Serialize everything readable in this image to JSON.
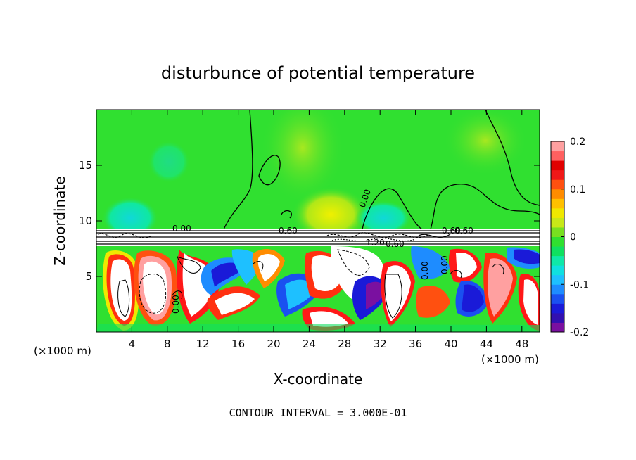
{
  "chart_data": {
    "type": "heatmap",
    "title": "disturbunce of potential temperature",
    "xlabel": "X-coordinate",
    "ylabel": "Z-coordinate",
    "x_unit": "(×1000 m)",
    "x_unit_right": "(×1000 m)",
    "xlim": [
      0,
      50
    ],
    "ylim": [
      0,
      20
    ],
    "x_ticks": [
      4,
      8,
      12,
      16,
      20,
      24,
      28,
      32,
      36,
      40,
      44,
      48
    ],
    "y_ticks": [
      5,
      10,
      15
    ],
    "colorbar": {
      "ticks": [
        "0.2",
        "0.1",
        "0",
        "-0.1",
        "-0.2"
      ],
      "range": [
        -0.2,
        0.2
      ],
      "colors": [
        "#7a10a0",
        "#3210b0",
        "#1a1ad8",
        "#1a50f0",
        "#1e8cff",
        "#1ec0ff",
        "#10e0e0",
        "#10e8a8",
        "#10e060",
        "#30e030",
        "#78e020",
        "#c8e818",
        "#f0e800",
        "#ffc000",
        "#ff8c00",
        "#ff5010",
        "#f01818",
        "#e00000",
        "#ff6060",
        "#ffa0a0"
      ]
    },
    "contour_labels": [
      "0.00",
      "0.60",
      "1.20",
      "0.60",
      "0.00",
      "0.00",
      "0.60",
      "0.00",
      "0.00",
      "0.60"
    ],
    "footer": "CONTOUR INTERVAL = 3.000E-01"
  }
}
